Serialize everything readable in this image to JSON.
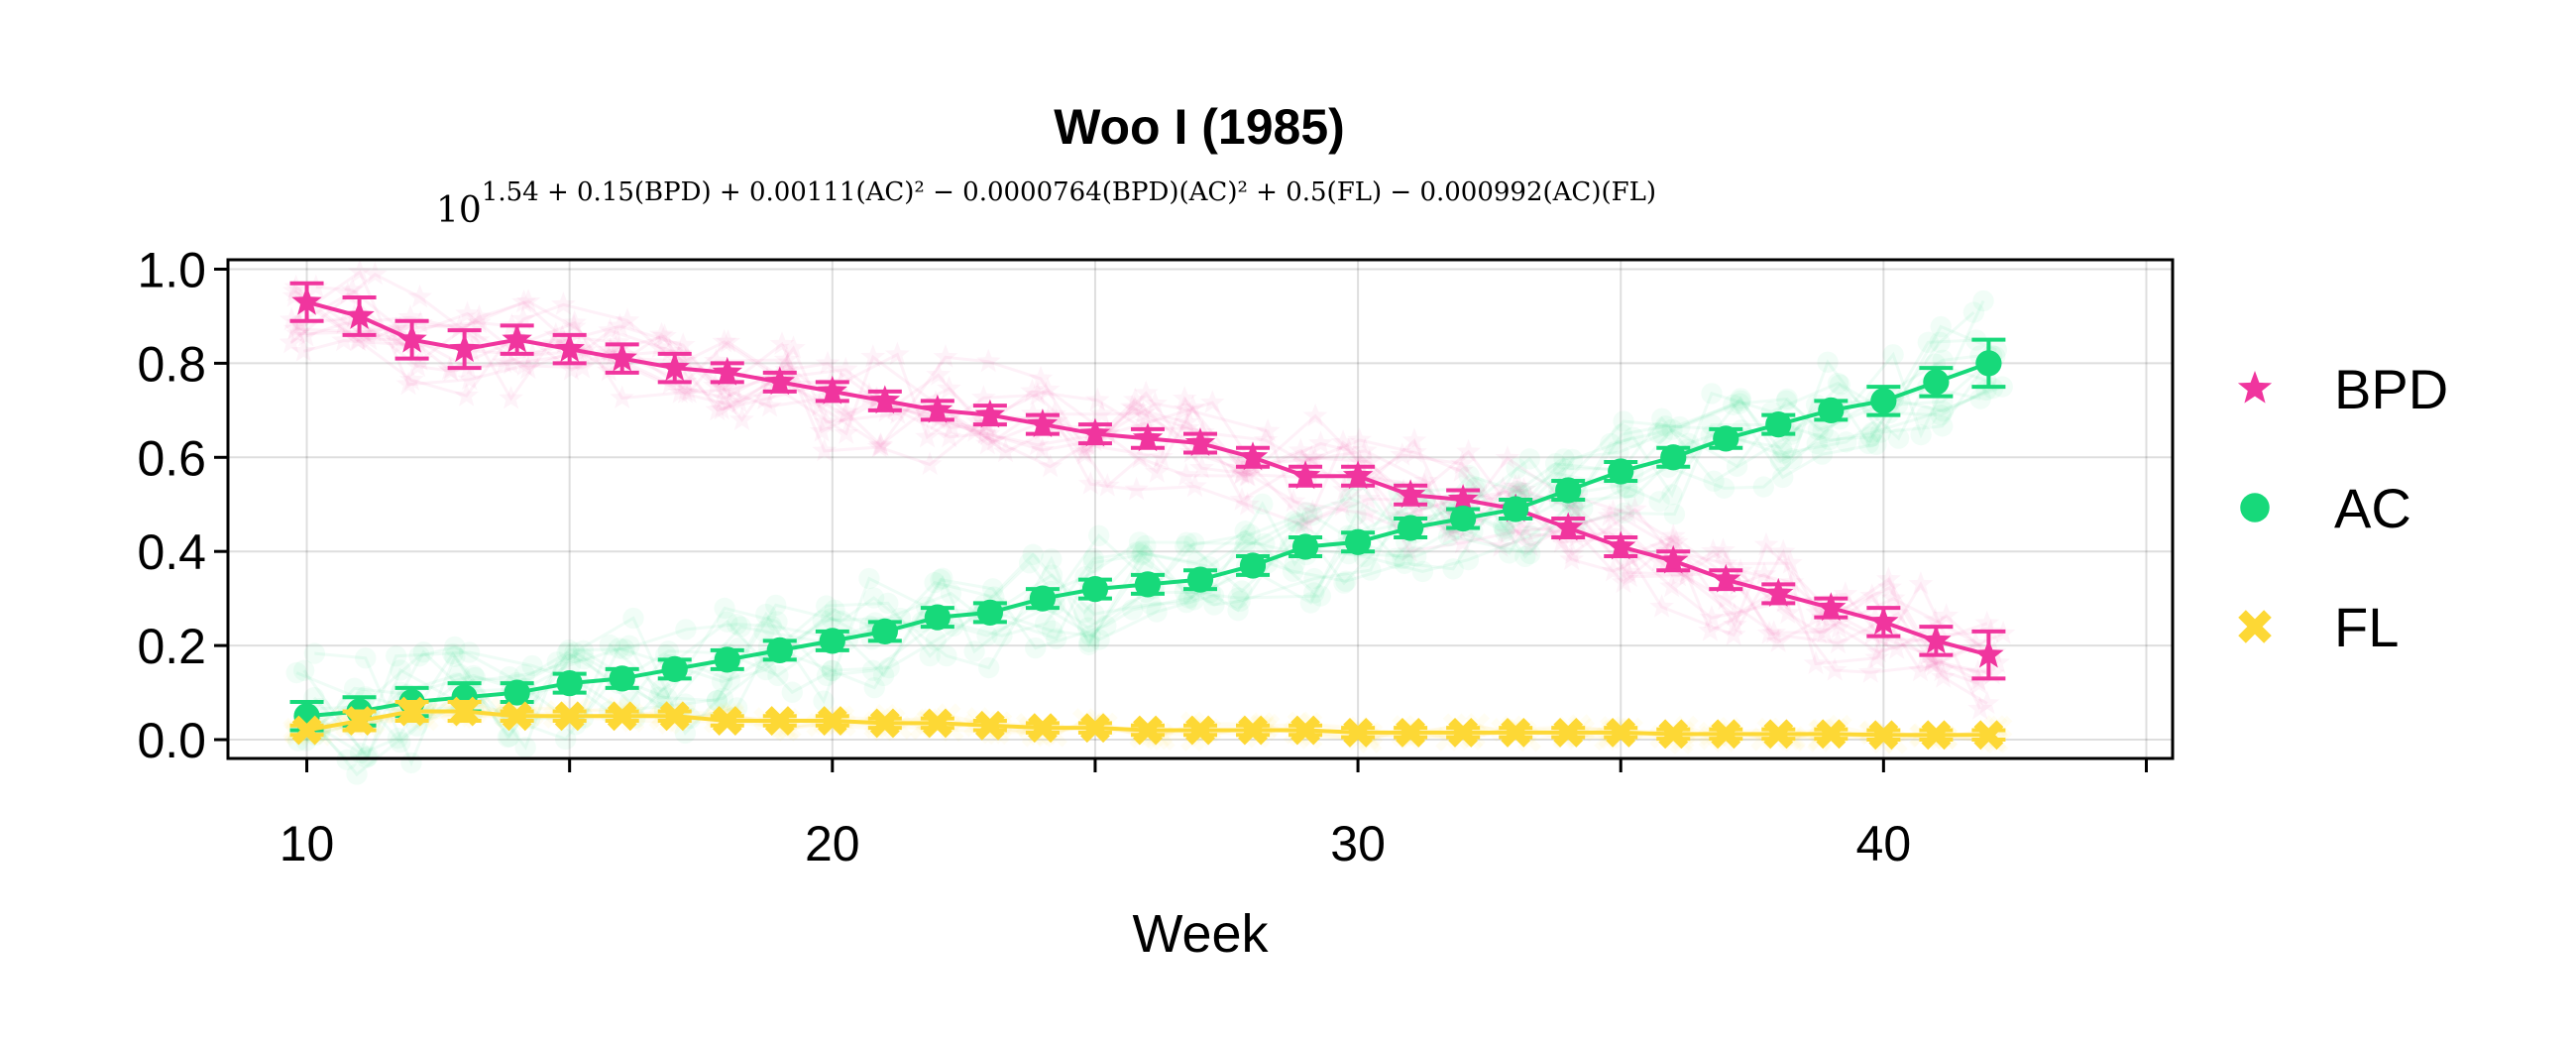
{
  "chart_data": {
    "type": "scatter",
    "title": "Woo I (1985)",
    "formula": {
      "base": "10",
      "exponent": "1.54 + 0.15(BPD) + 0.00111(AC)² − 0.0000764(BPD)(AC)² + 0.5(FL) − 0.000992(AC)(FL)"
    },
    "xlabel": "Week",
    "ylabel": "",
    "xlim": [
      8.5,
      45.5
    ],
    "ylim": [
      -0.04,
      1.02
    ],
    "xticks": [
      10,
      20,
      30,
      40
    ],
    "xminor_ticks": [
      15,
      25,
      35,
      45
    ],
    "yticks": [
      "0.0",
      "0.2",
      "0.4",
      "0.6",
      "0.8",
      "1.0"
    ],
    "grid": true,
    "legend_position": "right",
    "x": [
      10,
      11,
      12,
      13,
      14,
      15,
      16,
      17,
      18,
      19,
      20,
      21,
      22,
      23,
      24,
      25,
      26,
      27,
      28,
      29,
      30,
      31,
      32,
      33,
      34,
      35,
      36,
      37,
      38,
      39,
      40,
      41,
      42
    ],
    "series": [
      {
        "name": "BPD",
        "marker": "star",
        "color": "#f0359e",
        "values": [
          0.93,
          0.9,
          0.85,
          0.83,
          0.85,
          0.83,
          0.81,
          0.79,
          0.78,
          0.76,
          0.74,
          0.72,
          0.7,
          0.69,
          0.67,
          0.65,
          0.64,
          0.63,
          0.6,
          0.56,
          0.56,
          0.52,
          0.51,
          0.49,
          0.45,
          0.41,
          0.38,
          0.34,
          0.31,
          0.28,
          0.25,
          0.21,
          0.18
        ],
        "err": [
          0.04,
          0.04,
          0.04,
          0.04,
          0.03,
          0.03,
          0.03,
          0.03,
          0.02,
          0.02,
          0.02,
          0.02,
          0.02,
          0.02,
          0.02,
          0.02,
          0.02,
          0.02,
          0.02,
          0.02,
          0.02,
          0.02,
          0.02,
          0.02,
          0.02,
          0.02,
          0.02,
          0.02,
          0.02,
          0.02,
          0.03,
          0.03,
          0.05
        ]
      },
      {
        "name": "AC",
        "marker": "circle",
        "color": "#17d97a",
        "values": [
          0.05,
          0.06,
          0.08,
          0.09,
          0.1,
          0.12,
          0.13,
          0.15,
          0.17,
          0.19,
          0.21,
          0.23,
          0.26,
          0.27,
          0.3,
          0.32,
          0.33,
          0.34,
          0.37,
          0.41,
          0.42,
          0.45,
          0.47,
          0.49,
          0.53,
          0.57,
          0.6,
          0.64,
          0.67,
          0.7,
          0.72,
          0.76,
          0.8
        ],
        "err": [
          0.03,
          0.03,
          0.03,
          0.03,
          0.02,
          0.02,
          0.02,
          0.02,
          0.02,
          0.02,
          0.02,
          0.02,
          0.02,
          0.02,
          0.02,
          0.02,
          0.02,
          0.02,
          0.02,
          0.02,
          0.02,
          0.02,
          0.02,
          0.02,
          0.02,
          0.02,
          0.02,
          0.02,
          0.02,
          0.02,
          0.03,
          0.03,
          0.05
        ]
      },
      {
        "name": "FL",
        "marker": "x",
        "color": "#fdd835",
        "values": [
          0.02,
          0.04,
          0.06,
          0.06,
          0.05,
          0.05,
          0.05,
          0.05,
          0.04,
          0.04,
          0.04,
          0.035,
          0.035,
          0.03,
          0.025,
          0.025,
          0.02,
          0.02,
          0.02,
          0.02,
          0.015,
          0.015,
          0.015,
          0.015,
          0.015,
          0.015,
          0.012,
          0.012,
          0.012,
          0.012,
          0.01,
          0.01,
          0.01
        ],
        "err": [
          0.01,
          0.02,
          0.02,
          0.02,
          0.01,
          0.01,
          0.01,
          0.01,
          0.01,
          0.01,
          0.01,
          0.01,
          0.01,
          0.01,
          0.01,
          0.01,
          0.01,
          0.01,
          0.01,
          0.01,
          0.01,
          0.01,
          0.01,
          0.01,
          0.01,
          0.01,
          0.01,
          0.01,
          0.01,
          0.01,
          0.01,
          0.01,
          0.01
        ]
      }
    ]
  }
}
